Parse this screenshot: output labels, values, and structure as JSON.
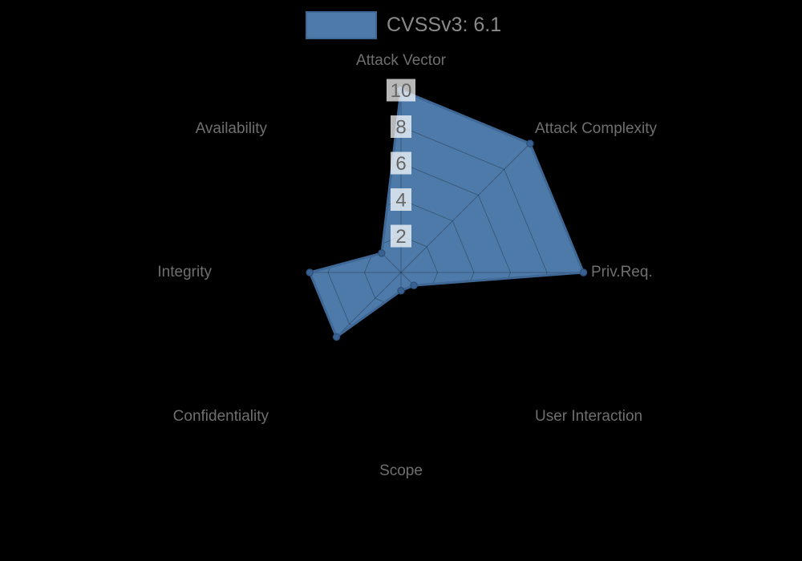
{
  "legend": {
    "series_label": "CVSSv3: 6.1"
  },
  "chart_data": {
    "type": "radar",
    "categories": [
      "Attack Vector",
      "Attack Complexity",
      "Priv.Req.",
      "User Interaction",
      "Scope",
      "Confidentiality",
      "Integrity",
      "Availability"
    ],
    "series": [
      {
        "name": "CVSSv3: 6.1",
        "values": [
          10,
          10,
          10,
          1,
          1,
          5,
          5,
          1.5
        ]
      }
    ],
    "scale": {
      "min": 0,
      "max": 10,
      "ticks": [
        2,
        4,
        6,
        8,
        10
      ]
    },
    "legend_position": "top",
    "grid": true,
    "colors": {
      "background": "#000000",
      "fill": "#4d7aa8",
      "border": "#3f6896",
      "point": "#3a6191",
      "point_border": "#2f5480",
      "grid_line": "rgba(0,0,0,0.25)",
      "tick_text": "#666666",
      "tick_backdrop": "rgba(255,255,255,0.72)",
      "label_text": "#6f6f6f",
      "legend_text": "#8a8a8a"
    }
  }
}
